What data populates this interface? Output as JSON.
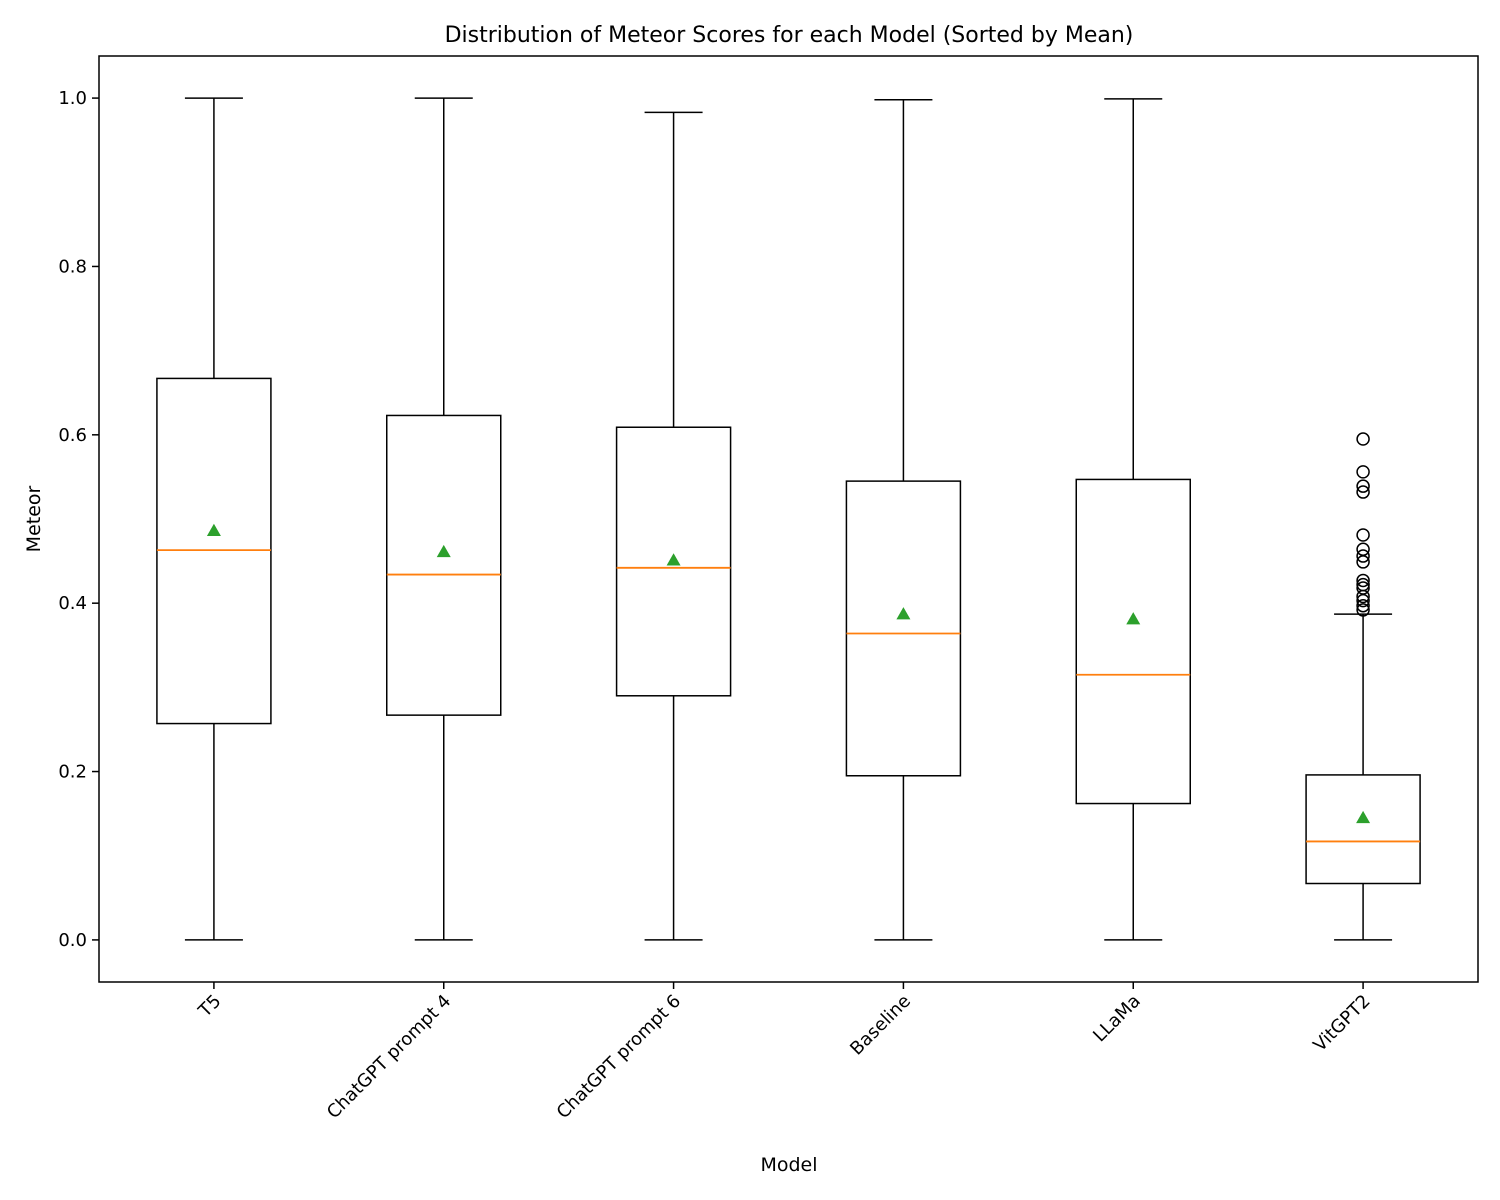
{
  "chart_data": {
    "type": "box",
    "title": "Distribution of Meteor Scores for each Model (Sorted by Mean)",
    "xlabel": "Model",
    "ylabel": "Meteor",
    "ylim": [
      -0.05,
      1.05
    ],
    "yticks": [
      "0.0",
      "0.2",
      "0.4",
      "0.6",
      "0.8",
      "1.0"
    ],
    "categories": [
      "T5",
      "ChatGPT prompt 4",
      "ChatGPT prompt 6",
      "Baseline",
      "LLaMa",
      "VitGPT2"
    ],
    "boxes": [
      {
        "name": "T5",
        "whisker_low": 0.0,
        "q1": 0.257,
        "median": 0.463,
        "q3": 0.667,
        "whisker_high": 1.0,
        "mean": 0.486,
        "outliers": []
      },
      {
        "name": "ChatGPT prompt 4",
        "whisker_low": 0.0,
        "q1": 0.267,
        "median": 0.434,
        "q3": 0.623,
        "whisker_high": 1.0,
        "mean": 0.461,
        "outliers": []
      },
      {
        "name": "ChatGPT prompt 6",
        "whisker_low": 0.0,
        "q1": 0.29,
        "median": 0.442,
        "q3": 0.609,
        "whisker_high": 0.983,
        "mean": 0.451,
        "outliers": []
      },
      {
        "name": "Baseline",
        "whisker_low": 0.0,
        "q1": 0.195,
        "median": 0.364,
        "q3": 0.545,
        "whisker_high": 0.998,
        "mean": 0.387,
        "outliers": []
      },
      {
        "name": "LLaMa",
        "whisker_low": 0.0,
        "q1": 0.162,
        "median": 0.315,
        "q3": 0.547,
        "whisker_high": 0.999,
        "mean": 0.381,
        "outliers": []
      },
      {
        "name": "VitGPT2",
        "whisker_low": 0.0,
        "q1": 0.067,
        "median": 0.117,
        "q3": 0.196,
        "whisker_high": 0.387,
        "mean": 0.145,
        "outliers": [
          0.595,
          0.556,
          0.539,
          0.532,
          0.481,
          0.464,
          0.456,
          0.449,
          0.427,
          0.422,
          0.418,
          0.408,
          0.403,
          0.397,
          0.392
        ]
      }
    ],
    "colors": {
      "box": "#000000",
      "median": "#ff7f0e",
      "mean": "#2ca02c",
      "outlier": "#000000"
    },
    "grid": false,
    "legend": "none"
  }
}
